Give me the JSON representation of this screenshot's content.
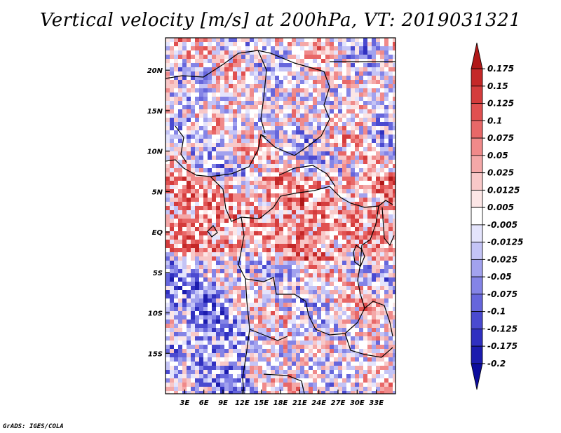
{
  "title": "Vertical velocity [m/s] at 200hPa, VT: 2019031321",
  "credit": "GrADS: IGES/COLA",
  "map": {
    "variable": "Vertical velocity",
    "units": "m/s",
    "level": "200hPa",
    "valid_time": "2019031321",
    "lon_range": [
      0,
      36
    ],
    "lat_range": [
      -20,
      24
    ],
    "lat_ticks": [
      {
        "value": 20,
        "label": "20N"
      },
      {
        "value": 15,
        "label": "15N"
      },
      {
        "value": 10,
        "label": "10N"
      },
      {
        "value": 5,
        "label": "5N"
      },
      {
        "value": 0,
        "label": "EQ"
      },
      {
        "value": -5,
        "label": "5S"
      },
      {
        "value": -10,
        "label": "10S"
      },
      {
        "value": -15,
        "label": "15S"
      }
    ],
    "lon_ticks": [
      {
        "value": 3,
        "label": "3E"
      },
      {
        "value": 6,
        "label": "6E"
      },
      {
        "value": 9,
        "label": "9E"
      },
      {
        "value": 12,
        "label": "12E"
      },
      {
        "value": 15,
        "label": "15E"
      },
      {
        "value": 18,
        "label": "18E"
      },
      {
        "value": 21,
        "label": "21E"
      },
      {
        "value": 24,
        "label": "24E"
      },
      {
        "value": 27,
        "label": "27E"
      },
      {
        "value": 30,
        "label": "30E"
      },
      {
        "value": 33,
        "label": "33E"
      }
    ]
  },
  "colorbar": {
    "labels": [
      "0.175",
      "0.15",
      "0.125",
      "0.1",
      "0.075",
      "0.05",
      "0.025",
      "0.0125",
      "0.005",
      "-0.005",
      "-0.0125",
      "-0.025",
      "-0.05",
      "-0.075",
      "-0.1",
      "-0.125",
      "-0.175",
      "-0.2"
    ],
    "colors": [
      "#b01818",
      "#c42828",
      "#d43c3c",
      "#e05050",
      "#e86868",
      "#f08a8a",
      "#f4a8a8",
      "#f8c8c8",
      "#fce6e6",
      "#ffffff",
      "#e4e4fc",
      "#c4c4f6",
      "#a2a2ee",
      "#8484e6",
      "#6666dc",
      "#4a4ad0",
      "#3030c0",
      "#1c1cae",
      "#0c0c9c"
    ]
  }
}
